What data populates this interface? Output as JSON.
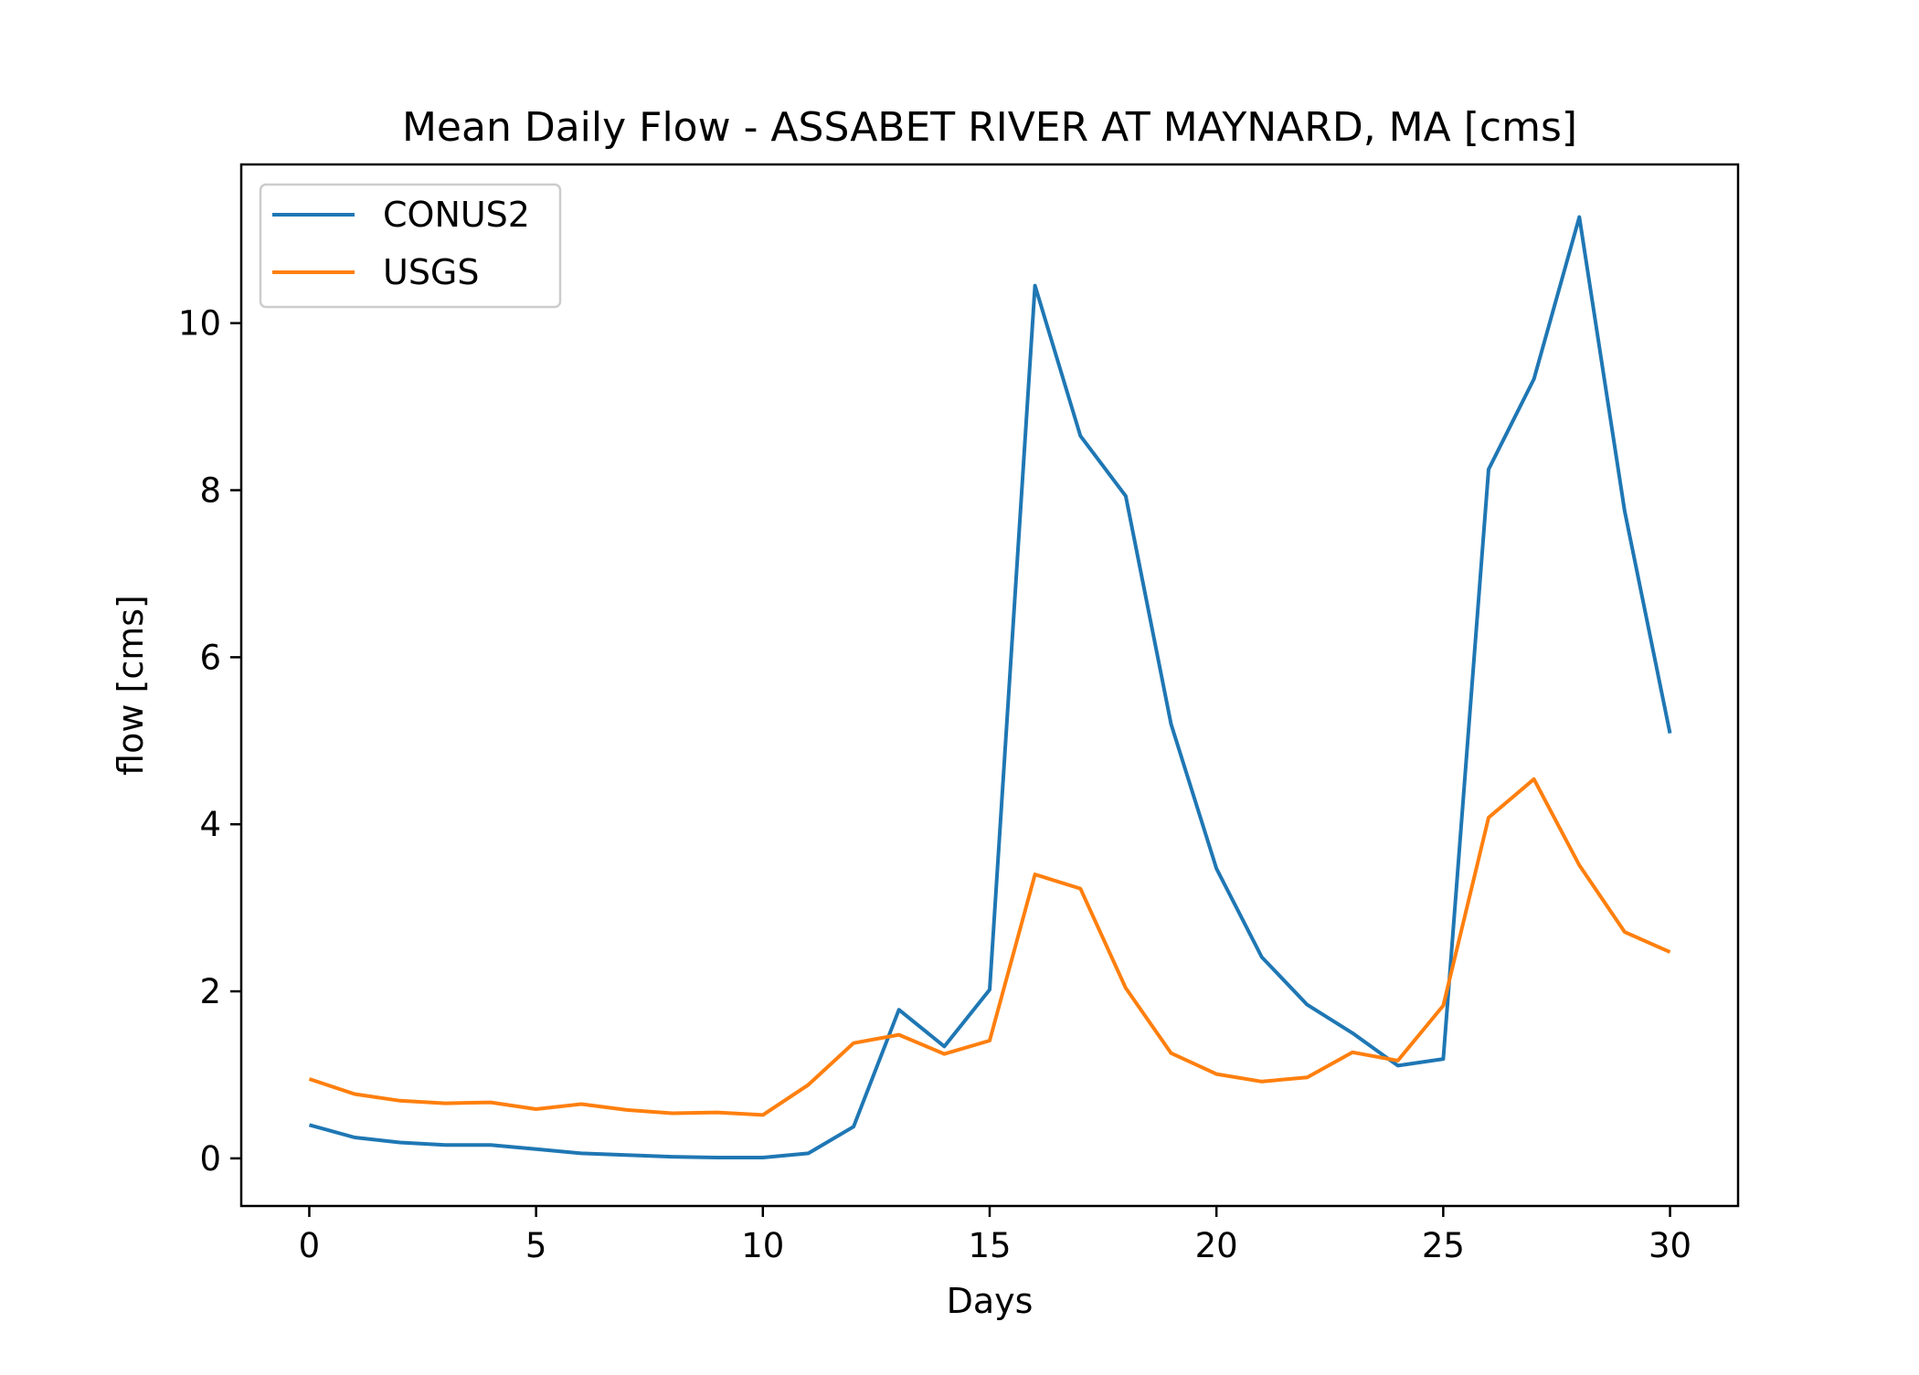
{
  "chart_data": {
    "type": "line",
    "title": "Mean Daily Flow - ASSABET RIVER AT MAYNARD, MA [cms]",
    "xlabel": "Days",
    "ylabel": "flow [cms]",
    "xlim": [
      -1.5,
      31.5
    ],
    "ylim": [
      -0.57,
      11.9
    ],
    "xticks": [
      0,
      5,
      10,
      15,
      20,
      25,
      30
    ],
    "yticks": [
      0,
      2,
      4,
      6,
      8,
      10
    ],
    "grid": false,
    "legend_position": "upper-left",
    "x": [
      0,
      1,
      2,
      3,
      4,
      5,
      6,
      7,
      8,
      9,
      10,
      11,
      12,
      13,
      14,
      15,
      16,
      17,
      18,
      19,
      20,
      21,
      22,
      23,
      24,
      25,
      26,
      27,
      28,
      29,
      30
    ],
    "series": [
      {
        "name": "CONUS2",
        "color": "#1f77b4",
        "values": [
          0.4,
          0.25,
          0.19,
          0.16,
          0.16,
          0.11,
          0.06,
          0.04,
          0.02,
          0.01,
          0.01,
          0.06,
          0.38,
          1.78,
          1.34,
          2.02,
          10.45,
          8.65,
          7.93,
          5.2,
          3.47,
          2.41,
          1.84,
          1.5,
          1.11,
          1.19,
          8.25,
          9.33,
          11.27,
          7.75,
          5.09
        ]
      },
      {
        "name": "USGS",
        "color": "#ff7f0e",
        "values": [
          0.95,
          0.77,
          0.69,
          0.66,
          0.67,
          0.59,
          0.65,
          0.58,
          0.54,
          0.55,
          0.52,
          0.88,
          1.38,
          1.48,
          1.25,
          1.41,
          3.4,
          3.23,
          2.04,
          1.26,
          1.01,
          0.92,
          0.97,
          1.27,
          1.17,
          1.83,
          4.08,
          4.54,
          3.51,
          2.71,
          2.47
        ]
      }
    ]
  }
}
